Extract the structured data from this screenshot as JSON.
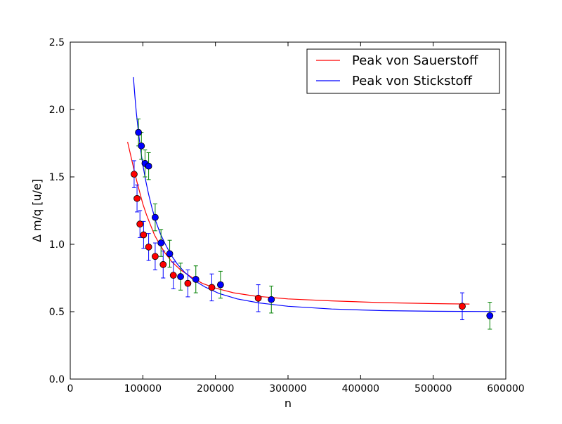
{
  "chart_data": {
    "type": "scatter",
    "title": "",
    "xlabel": "n",
    "ylabel": "Δ m/q [u/e]",
    "xlim": [
      0,
      600000
    ],
    "ylim": [
      0.0,
      2.5
    ],
    "xticks": [
      0,
      100000,
      200000,
      300000,
      400000,
      500000,
      600000
    ],
    "xtick_labels": [
      "0",
      "100000",
      "200000",
      "300000",
      "400000",
      "500000",
      "600000"
    ],
    "yticks": [
      0.0,
      0.5,
      1.0,
      1.5,
      2.0,
      2.5
    ],
    "ytick_labels": [
      "0.0",
      "0.5",
      "1.0",
      "1.5",
      "2.0",
      "2.5"
    ],
    "grid": false,
    "legend_position": "top-right",
    "series": [
      {
        "name": "Peak von Sauerstoff",
        "kind": "fit-line",
        "color": "#ff0000",
        "x": [
          79000,
          82000,
          85000,
          88000,
          92000,
          96000,
          100000,
          105000,
          110000,
          116000,
          122000,
          130000,
          140000,
          152000,
          166000,
          182000,
          200000,
          225000,
          255000,
          300000,
          360000,
          430000,
          500000,
          550000
        ],
        "y": [
          1.76,
          1.69,
          1.62,
          1.55,
          1.46,
          1.38,
          1.3,
          1.22,
          1.15,
          1.07,
          1.01,
          0.94,
          0.87,
          0.81,
          0.76,
          0.71,
          0.675,
          0.64,
          0.615,
          0.595,
          0.58,
          0.567,
          0.56,
          0.557
        ]
      },
      {
        "name": "Peak von Stickstoff",
        "kind": "fit-line",
        "color": "#0000ff",
        "x": [
          87000,
          89000,
          91000,
          94000,
          97000,
          100000,
          104000,
          108000,
          113000,
          118000,
          124000,
          131000,
          139000,
          148000,
          158000,
          170000,
          185000,
          205000,
          230000,
          260000,
          300000,
          360000,
          430000,
          500000,
          586000
        ],
        "y": [
          2.24,
          2.1,
          1.98,
          1.83,
          1.7,
          1.59,
          1.47,
          1.37,
          1.26,
          1.17,
          1.08,
          1.0,
          0.92,
          0.85,
          0.79,
          0.735,
          0.685,
          0.635,
          0.595,
          0.565,
          0.54,
          0.52,
          0.508,
          0.503,
          0.501
        ]
      }
    ],
    "error_points": [
      {
        "group": "Sauerstoff",
        "marker_color": "#ff0000",
        "errorbar_color": "#0000ff",
        "points": [
          {
            "x": 88000,
            "y": 1.52,
            "err": 0.1
          },
          {
            "x": 92000,
            "y": 1.34,
            "err": 0.1
          },
          {
            "x": 96000,
            "y": 1.15,
            "err": 0.1
          },
          {
            "x": 101000,
            "y": 1.07,
            "err": 0.1
          },
          {
            "x": 108000,
            "y": 0.98,
            "err": 0.1
          },
          {
            "x": 117000,
            "y": 0.91,
            "err": 0.1
          },
          {
            "x": 128000,
            "y": 0.85,
            "err": 0.1
          },
          {
            "x": 142000,
            "y": 0.77,
            "err": 0.1
          },
          {
            "x": 162000,
            "y": 0.71,
            "err": 0.1
          },
          {
            "x": 195000,
            "y": 0.68,
            "err": 0.1
          },
          {
            "x": 259000,
            "y": 0.6,
            "err": 0.1
          },
          {
            "x": 540000,
            "y": 0.54,
            "err": 0.1
          }
        ]
      },
      {
        "group": "Stickstoff",
        "marker_color": "#0000ff",
        "errorbar_color": "#008000",
        "points": [
          {
            "x": 94000,
            "y": 1.83,
            "err": 0.1
          },
          {
            "x": 98000,
            "y": 1.73,
            "err": 0.1
          },
          {
            "x": 103000,
            "y": 1.6,
            "err": 0.1
          },
          {
            "x": 108000,
            "y": 1.58,
            "err": 0.1
          },
          {
            "x": 117000,
            "y": 1.2,
            "err": 0.1
          },
          {
            "x": 125000,
            "y": 1.01,
            "err": 0.1
          },
          {
            "x": 137000,
            "y": 0.93,
            "err": 0.1
          },
          {
            "x": 152000,
            "y": 0.76,
            "err": 0.1
          },
          {
            "x": 173000,
            "y": 0.74,
            "err": 0.1
          },
          {
            "x": 207000,
            "y": 0.7,
            "err": 0.1
          },
          {
            "x": 277000,
            "y": 0.59,
            "err": 0.1
          },
          {
            "x": 578000,
            "y": 0.47,
            "err": 0.1
          }
        ]
      }
    ]
  }
}
